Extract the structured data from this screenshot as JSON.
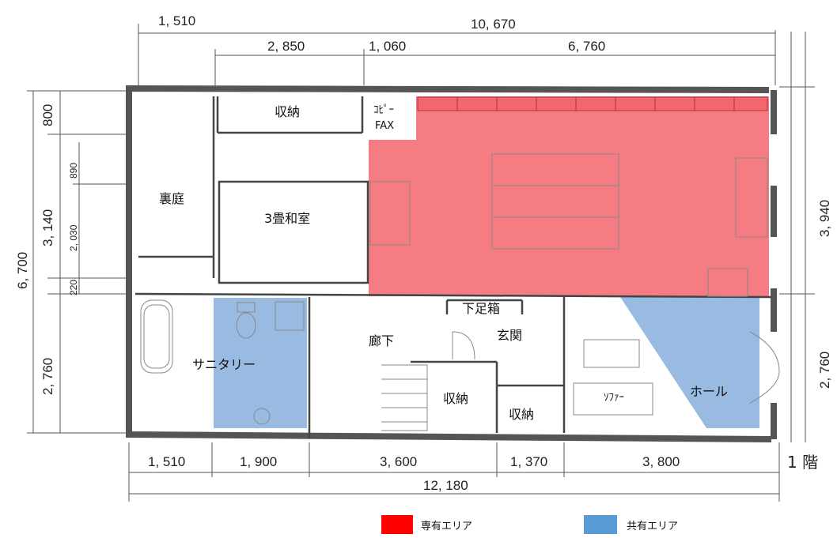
{
  "dimensions": {
    "top": {
      "outer_left": "1, 510",
      "total": "10, 670",
      "d1": "2, 850",
      "d2": "1, 060",
      "d3": "6, 760"
    },
    "left": {
      "total": "6, 700",
      "d1": "800",
      "d2": "3, 140",
      "d2a": "890",
      "d2b": "2, 030",
      "d3": "220",
      "d4": "2, 760"
    },
    "right": {
      "d1": "3, 940",
      "d2": "2, 760"
    },
    "bottom": {
      "d1": "1, 510",
      "d2": "1, 900",
      "d3": "3, 600",
      "d4": "1, 370",
      "d5": "3, 800",
      "total": "12, 180"
    }
  },
  "rooms": {
    "storage_top": "収納",
    "copy_fax_line1": "ｺﾋﾟｰ",
    "copy_fax_line2": "FAX",
    "backyard": "裏庭",
    "tatami": "3畳和室",
    "sanitary": "サニタリー",
    "hallway": "廊下",
    "shoe_box": "下足箱",
    "entrance": "玄関",
    "storage_stair": "収納",
    "storage_small": "収納",
    "sofa": "ｿﾌｧｰ",
    "hall": "ホール"
  },
  "floor_label": "1 階",
  "legend": [
    {
      "label": "専有エリア",
      "color": "#ff0000"
    },
    {
      "label": "共有エリア",
      "color": "#5b9bd5"
    }
  ],
  "area_colors": {
    "private": "#f24a55",
    "shared": "#8fb4de"
  }
}
